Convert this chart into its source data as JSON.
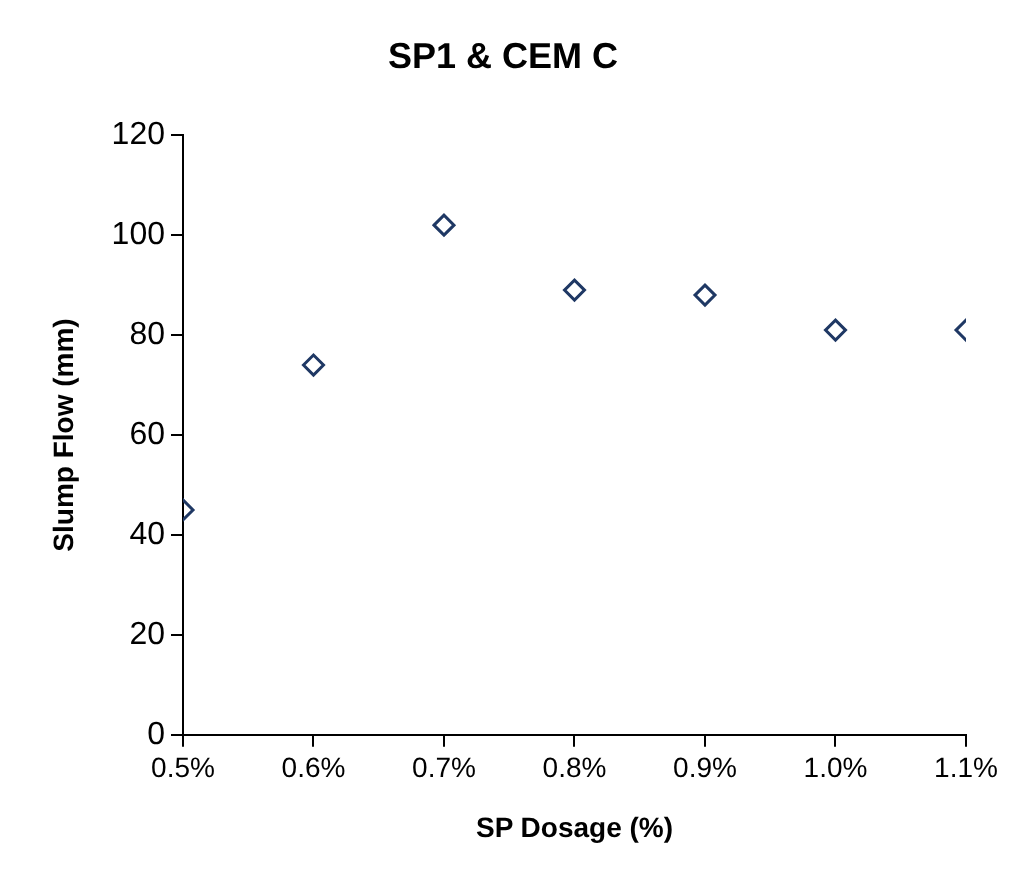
{
  "chart_data": {
    "type": "scatter",
    "title": "SP1 & CEM C",
    "xlabel": "SP Dosage (%)",
    "ylabel": "Slump Flow (mm)",
    "x": [
      0.5,
      0.6,
      0.7,
      0.8,
      0.9,
      1.0,
      1.1
    ],
    "series": [
      {
        "color": "#1f3864",
        "values": [
          45,
          74,
          102,
          89,
          88,
          81,
          81
        ]
      }
    ],
    "xlim": [
      0.5,
      1.1
    ],
    "xticks": [
      {
        "value": 0.5,
        "label": "0.5%"
      },
      {
        "value": 0.6,
        "label": "0.6%"
      },
      {
        "value": 0.7,
        "label": "0.7%"
      },
      {
        "value": 0.8,
        "label": "0.8%"
      },
      {
        "value": 0.9,
        "label": "0.9%"
      },
      {
        "value": 1.0,
        "label": "1.0%"
      },
      {
        "value": 1.1,
        "label": "1.1%"
      }
    ],
    "ylim": [
      0,
      120
    ],
    "yticks": [
      0,
      20,
      40,
      60,
      80,
      100,
      120
    ],
    "grid": false,
    "legend": false,
    "marker": "diamond"
  }
}
